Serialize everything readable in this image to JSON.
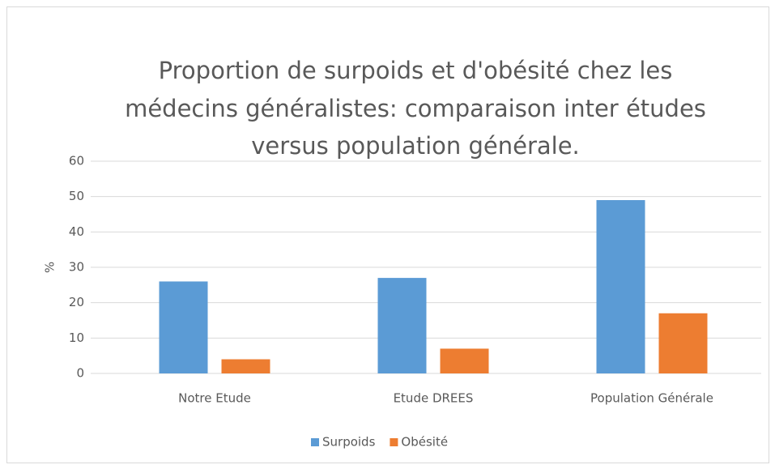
{
  "chart_data": {
    "type": "bar",
    "title": [
      "Proportion de surpoids et d'obésité chez les",
      "médecins généralistes: comparaison inter études",
      "versus population générale."
    ],
    "ylabel": "%",
    "categories": [
      "Notre Etude",
      "Etude DREES",
      "Population Générale"
    ],
    "series": [
      {
        "name": "Surpoids",
        "color": "#5b9bd5",
        "values": [
          26,
          27,
          49
        ]
      },
      {
        "name": "Obésité",
        "color": "#ed7d31",
        "values": [
          4,
          7,
          17
        ]
      }
    ],
    "ylim": [
      0,
      60
    ],
    "yticks": [
      0,
      10,
      20,
      30,
      40,
      50,
      60
    ],
    "grid": true,
    "legend": "bottom"
  }
}
